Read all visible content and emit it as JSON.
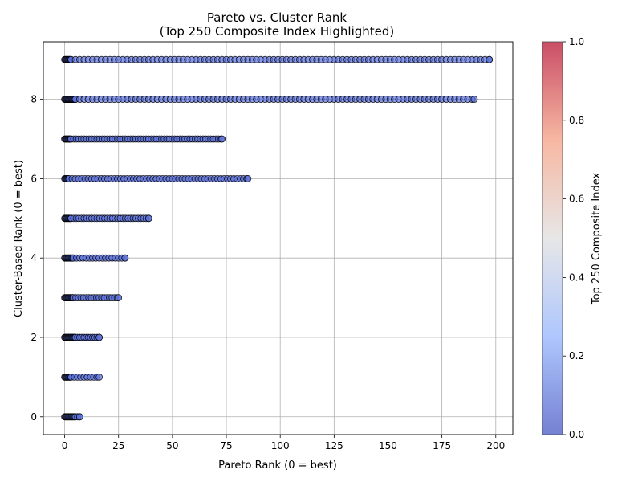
{
  "chart_data": {
    "type": "scatter",
    "title": "Pareto vs. Cluster Rank",
    "subtitle": "(Top 250 Composite Index Highlighted)",
    "xlabel": "Pareto Rank (0 = best)",
    "ylabel": "Cluster-Based Rank (0 = best)",
    "xlim": [
      -9.9,
      207.9
    ],
    "ylim": [
      -0.45,
      9.45
    ],
    "xticks": [
      0,
      25,
      50,
      75,
      100,
      125,
      150,
      175,
      200
    ],
    "yticks": [
      0,
      2,
      4,
      6,
      8
    ],
    "grid": true,
    "colorbar": {
      "label": "Top 250 Composite Index",
      "range": [
        0.0,
        1.0
      ],
      "ticks": [
        "0.0",
        "0.2",
        "0.4",
        "0.6",
        "0.8",
        "1.0"
      ],
      "colormap": "coolwarm",
      "low_color": "#3b4cc0",
      "mid_color": "#dddddd",
      "high_color": "#b40426"
    },
    "marker": {
      "color": "#5a6fd8",
      "edge_color": "#000000",
      "alpha": 0.7,
      "composite_index": 0.0
    },
    "rows": [
      {
        "y": 0,
        "x_min": 0,
        "x_max": 7,
        "dense_until": 5,
        "step": 1
      },
      {
        "y": 1,
        "x_min": 0,
        "x_max": 16,
        "dense_until": 3,
        "step": 1.5
      },
      {
        "y": 2,
        "x_min": 0,
        "x_max": 16,
        "dense_until": 5,
        "step": 1
      },
      {
        "y": 3,
        "x_min": 0,
        "x_max": 25,
        "dense_until": 4,
        "step": 1.2
      },
      {
        "y": 4,
        "x_min": 0,
        "x_max": 28,
        "dense_until": 4,
        "step": 1.5
      },
      {
        "y": 5,
        "x_min": 0,
        "x_max": 39,
        "dense_until": 3,
        "step": 1.2
      },
      {
        "y": 6,
        "x_min": 0,
        "x_max": 85,
        "dense_until": 2,
        "step": 1.5
      },
      {
        "y": 7,
        "x_min": 0,
        "x_max": 73,
        "dense_until": 3,
        "step": 1.2
      },
      {
        "y": 8,
        "x_min": 0,
        "x_max": 190,
        "dense_until": 5,
        "step": 2
      },
      {
        "y": 9,
        "x_min": 0,
        "x_max": 197,
        "dense_until": 3,
        "step": 2
      }
    ]
  }
}
